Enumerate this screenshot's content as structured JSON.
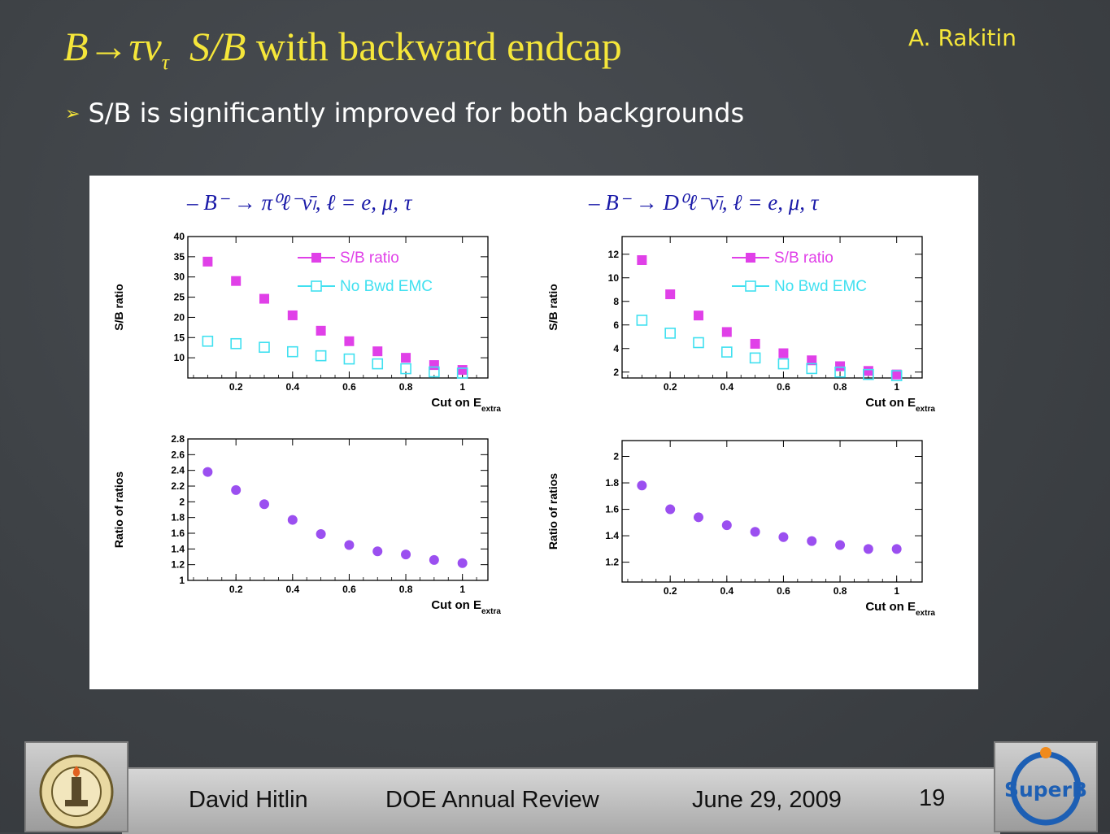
{
  "slide": {
    "title_main": "B→τν",
    "title_sub": "τ",
    "title_rest_italic": "S/B",
    "title_rest": "with backward endcap",
    "author": "A. Rakitin",
    "bullet_marker": "➢",
    "bullet": "S/B is significantly improved for both backgrounds"
  },
  "footer": {
    "presenter": "David Hitlin",
    "event": "DOE Annual Review",
    "date": "June 29, 2009",
    "page": "19",
    "left_logo": "caltech-seal",
    "right_logo": "superb-logo",
    "right_logo_text": "SuperB"
  },
  "colors": {
    "title": "#f5e63a",
    "sb_ratio": "#e040e8",
    "no_bwd": "#40e0f0",
    "ratio_points": "#9b4ff0",
    "eq_text": "#1a1aa8"
  },
  "chart_data": [
    {
      "type": "scatter",
      "panel_title": "– B⁻ → π⁰ℓ⁻ν̄ₗ, ℓ = e, μ, τ",
      "xlabel": "Cut on E",
      "xlabel_sub": "extra",
      "ylabel": "S/B ratio",
      "xlim": [
        0.03,
        1.09
      ],
      "ylim": [
        5,
        40
      ],
      "xticks": [
        "0.2",
        "0.4",
        "0.6",
        "0.8",
        "1"
      ],
      "yticks": [
        "10",
        "15",
        "20",
        "25",
        "30",
        "35",
        "40"
      ],
      "legend": [
        "S/B ratio",
        "No Bwd EMC"
      ],
      "x": [
        0.1,
        0.2,
        0.3,
        0.4,
        0.5,
        0.6,
        0.7,
        0.8,
        0.9,
        1.0
      ],
      "series": [
        {
          "name": "S/B ratio",
          "marker": "filled-square",
          "values": [
            33.8,
            29.0,
            24.6,
            20.5,
            16.7,
            14.1,
            11.6,
            10.0,
            8.2,
            7.0
          ]
        },
        {
          "name": "No Bwd EMC",
          "marker": "open-square",
          "values": [
            14.1,
            13.5,
            12.6,
            11.5,
            10.5,
            9.7,
            8.5,
            7.3,
            6.5,
            6.2
          ]
        }
      ]
    },
    {
      "type": "scatter",
      "panel_title": "– B⁻ → D⁰ℓ⁻ν̄ₗ, ℓ = e, μ, τ",
      "xlabel": "Cut on E",
      "xlabel_sub": "extra",
      "ylabel": "S/B ratio",
      "xlim": [
        0.03,
        1.09
      ],
      "ylim": [
        1.5,
        13.5
      ],
      "xticks": [
        "0.2",
        "0.4",
        "0.6",
        "0.8",
        "1"
      ],
      "yticks": [
        "2",
        "4",
        "6",
        "8",
        "10",
        "12"
      ],
      "legend": [
        "S/B ratio",
        "No Bwd EMC"
      ],
      "x": [
        0.1,
        0.2,
        0.3,
        0.4,
        0.5,
        0.6,
        0.7,
        0.8,
        0.9,
        1.0
      ],
      "series": [
        {
          "name": "S/B ratio",
          "marker": "filled-square",
          "values": [
            11.5,
            8.6,
            6.8,
            5.4,
            4.4,
            3.6,
            3.0,
            2.5,
            2.1,
            1.8
          ]
        },
        {
          "name": "No Bwd EMC",
          "marker": "open-square",
          "values": [
            6.4,
            5.3,
            4.5,
            3.7,
            3.2,
            2.7,
            2.3,
            2.0,
            1.8,
            1.7
          ]
        }
      ]
    },
    {
      "type": "scatter",
      "xlabel": "Cut on E",
      "xlabel_sub": "extra",
      "ylabel": "Ratio of ratios",
      "xlim": [
        0.03,
        1.09
      ],
      "ylim": [
        1.0,
        2.8
      ],
      "xticks": [
        "0.2",
        "0.4",
        "0.6",
        "0.8",
        "1"
      ],
      "yticks": [
        "1",
        "1.2",
        "1.4",
        "1.6",
        "1.8",
        "2",
        "2.2",
        "2.4",
        "2.6",
        "2.8"
      ],
      "x": [
        0.1,
        0.2,
        0.3,
        0.4,
        0.5,
        0.6,
        0.7,
        0.8,
        0.9,
        1.0
      ],
      "series": [
        {
          "marker": "filled-circle",
          "values": [
            2.38,
            2.15,
            1.97,
            1.77,
            1.59,
            1.45,
            1.37,
            1.33,
            1.26,
            1.22
          ]
        }
      ]
    },
    {
      "type": "scatter",
      "xlabel": "Cut on E",
      "xlabel_sub": "extra",
      "ylabel": "Ratio of ratios",
      "xlim": [
        0.03,
        1.09
      ],
      "ylim": [
        1.05,
        2.12
      ],
      "xticks": [
        "0.2",
        "0.4",
        "0.6",
        "0.8",
        "1"
      ],
      "yticks": [
        "1.2",
        "1.4",
        "1.6",
        "1.8",
        "2"
      ],
      "x": [
        0.1,
        0.2,
        0.3,
        0.4,
        0.5,
        0.6,
        0.7,
        0.8,
        0.9,
        1.0
      ],
      "series": [
        {
          "marker": "filled-circle",
          "values": [
            1.78,
            1.6,
            1.54,
            1.48,
            1.43,
            1.39,
            1.36,
            1.33,
            1.3,
            1.3
          ]
        }
      ]
    }
  ]
}
